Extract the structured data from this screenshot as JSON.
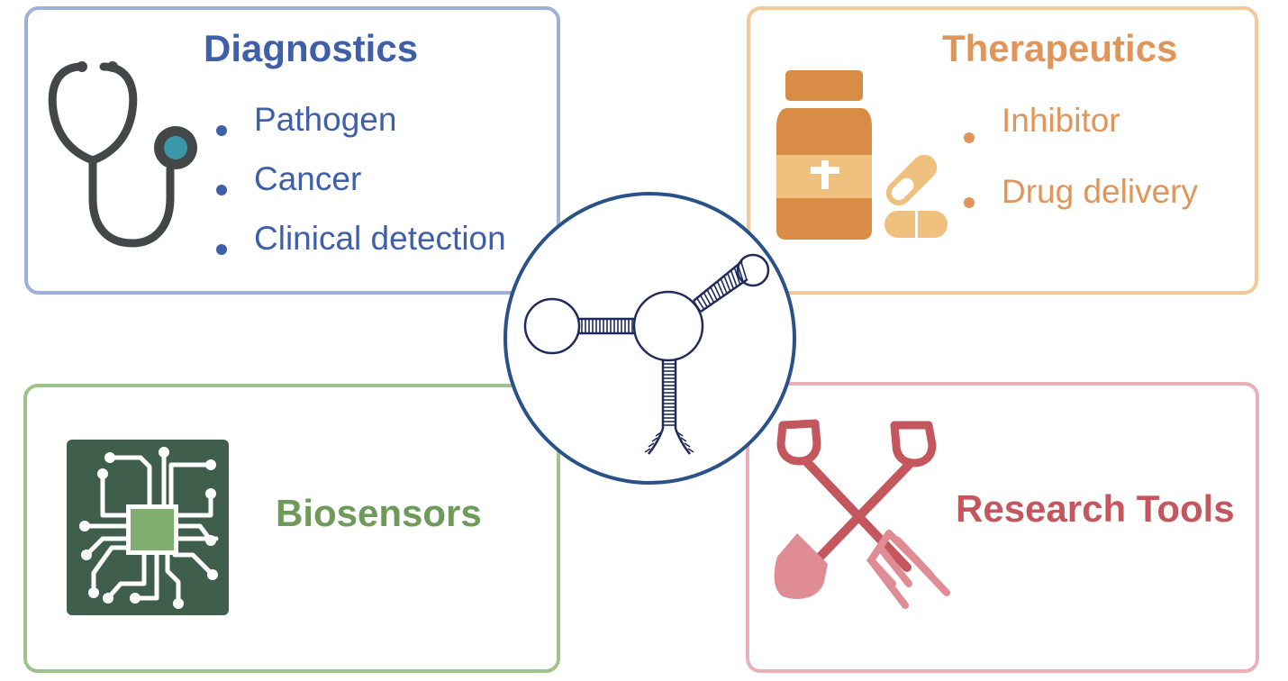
{
  "colors": {
    "diagnostics": "#3f60a8",
    "therapeutics": "#e0965a",
    "biosensors": "#6e9a5a",
    "research": "#c4575e",
    "center": "#2a5289"
  },
  "panels": {
    "diagnostics": {
      "title": "Diagnostics",
      "items": [
        "Pathogen",
        "Cancer",
        "Clinical detection"
      ],
      "icon": "stethoscope-icon"
    },
    "therapeutics": {
      "title": "Therapeutics",
      "items": [
        "Inhibitor",
        "Drug delivery"
      ],
      "icon": "medicine-bottle-icon"
    },
    "biosensors": {
      "title": "Biosensors",
      "icon": "circuit-chip-icon"
    },
    "research_tools": {
      "title": "Research Tools",
      "icon": "shovel-pitchfork-icon"
    }
  },
  "center": {
    "icon": "rna-aptamer-icon"
  }
}
